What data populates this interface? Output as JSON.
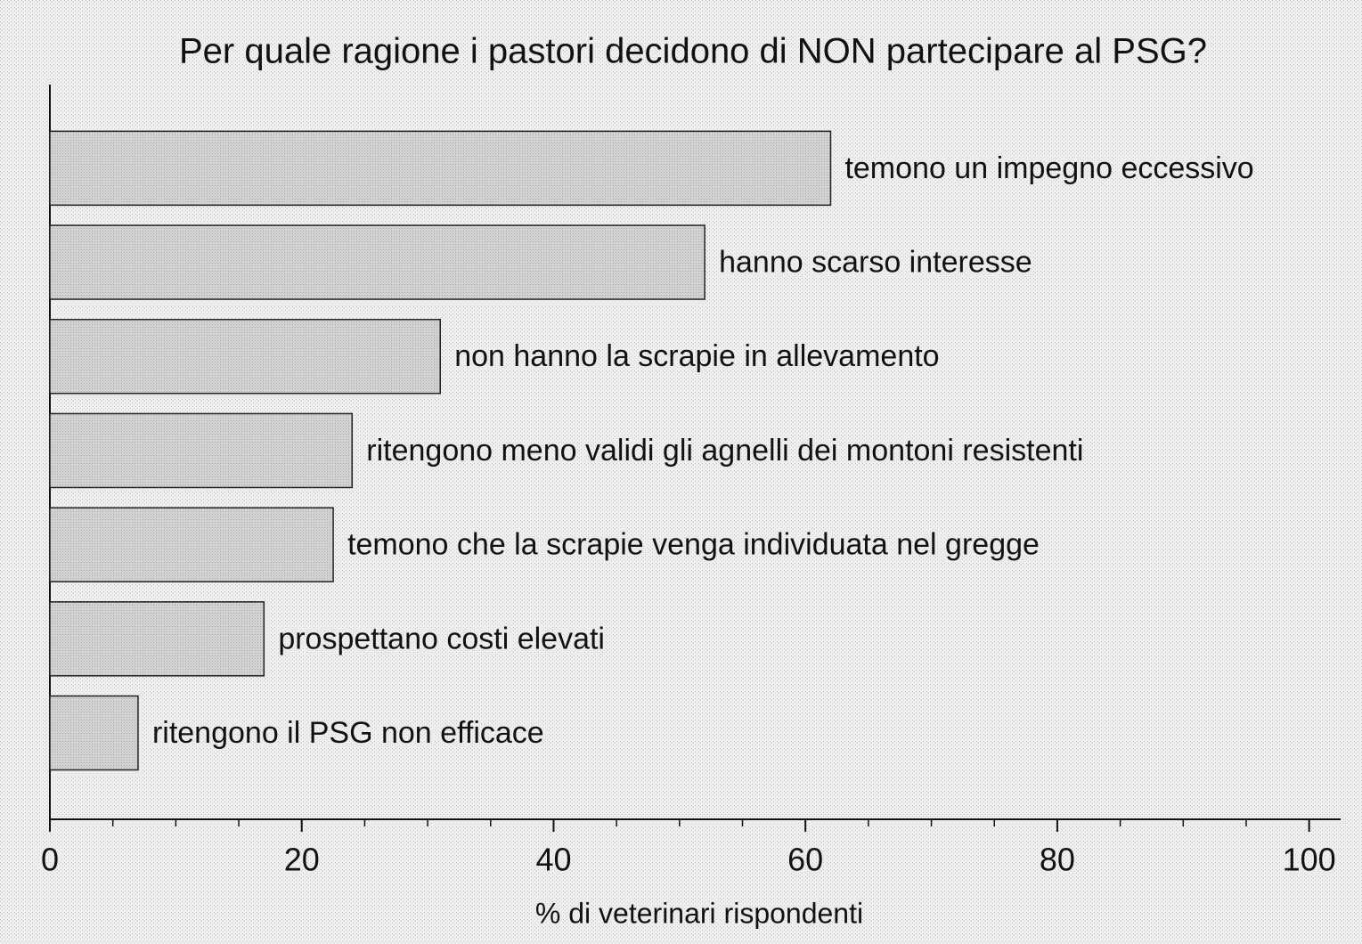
{
  "chart_data": {
    "type": "barh",
    "title": "Per quale ragione i pastori decidono di NON partecipare al PSG?",
    "x_label": "% di veterinari rispondenti",
    "categories": [
      "temono un impegno eccessivo",
      "hanno scarso interesse",
      "non hanno la scrapie in allevamento",
      "ritengono meno validi gli agnelli dei montoni resistenti",
      "temono che la scrapie venga individuata nel gregge",
      "prospettano costi elevati",
      "ritengono il PSG non efficace"
    ],
    "values": [
      62,
      52,
      31,
      24,
      22.5,
      17,
      7
    ],
    "color": "#cfcfcf",
    "xlim": [
      0,
      102.5
    ],
    "xticks": [
      0,
      20,
      40,
      60,
      80,
      100
    ],
    "xminorticks": [
      5,
      10,
      15,
      25,
      30,
      35,
      45,
      50,
      55,
      65,
      70,
      75,
      85,
      90,
      95
    ],
    "grid": false
  }
}
